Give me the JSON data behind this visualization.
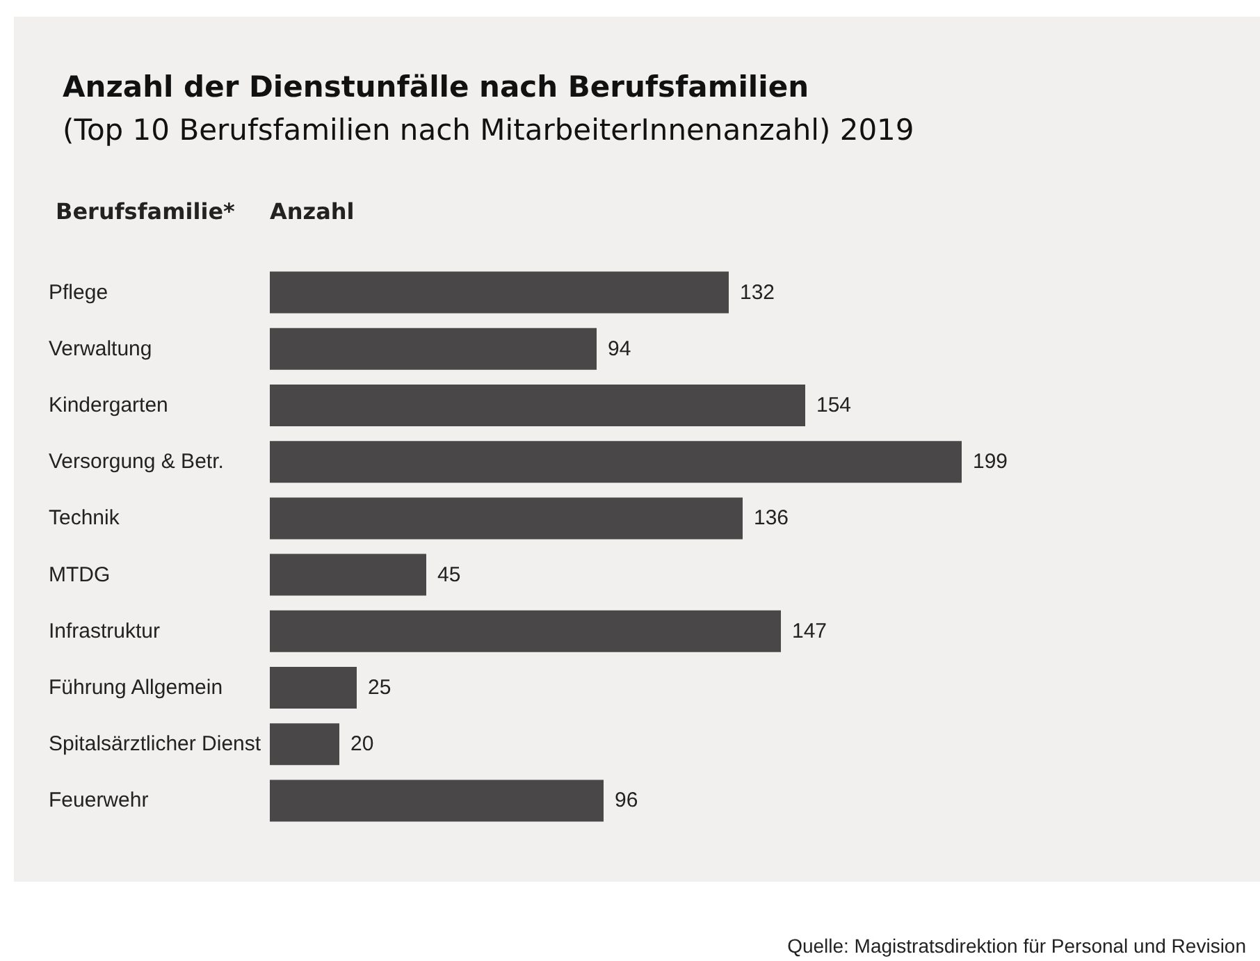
{
  "chart_data": {
    "type": "bar",
    "orientation": "horizontal",
    "title": "Anzahl der Dienstunfälle nach Berufsfamilien",
    "subtitle": "(Top 10 Berufsfamilien nach MitarbeiterInnenanzahl) 2019",
    "ylabel": "Berufsfamilie*",
    "xlabel": "Anzahl",
    "categories": [
      "Pflege",
      "Verwaltung",
      "Kindergarten",
      "Versorgung & Betr.",
      "Technik",
      "MTDG",
      "Infrastruktur",
      "Führung Allgemein",
      "Spitalsärztlicher Dienst",
      "Feuerwehr"
    ],
    "values": [
      132,
      94,
      154,
      199,
      136,
      45,
      147,
      25,
      20,
      96
    ],
    "color": "#4a4748",
    "data_labels": true,
    "annotations": [
      "Quelle: Magistratsdirektion für Personal und Revision"
    ]
  }
}
